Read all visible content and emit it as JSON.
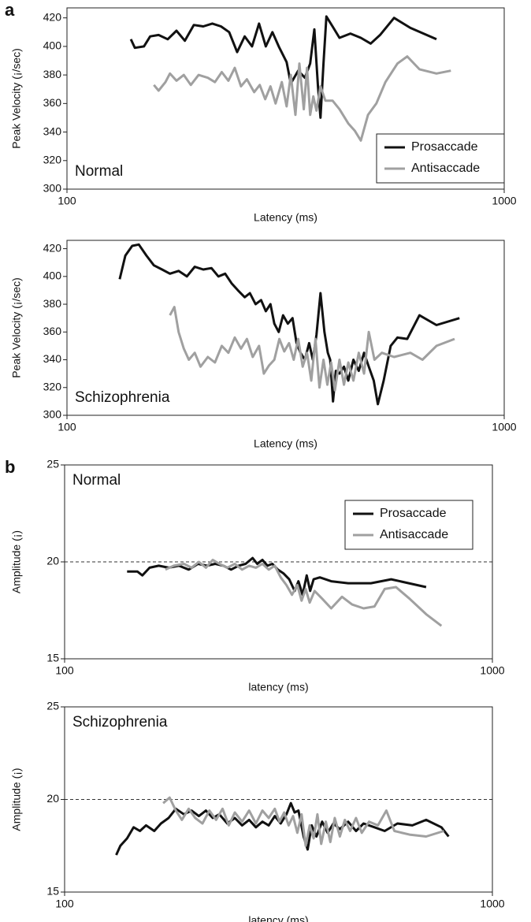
{
  "chart_data": [
    {
      "type": "line",
      "panel_label": "a",
      "annotation": "Normal",
      "annotation_corner": "lower left",
      "xlabel": "Latency (ms)",
      "ylabel": "Peak Velocity (¡/sec)",
      "xscale": "log",
      "xlim": [
        100,
        1000
      ],
      "xticks": [
        100,
        1000
      ],
      "ylim": [
        300,
        427
      ],
      "yticks": [
        300,
        320,
        340,
        360,
        380,
        400,
        420
      ],
      "legend": "lower right",
      "series": [
        {
          "name": "Prosaccade",
          "color": "#111111",
          "x": [
            140,
            143,
            150,
            155,
            162,
            170,
            178,
            186,
            195,
            205,
            215,
            225,
            235,
            245,
            255,
            265,
            275,
            285,
            295,
            305,
            318,
            325,
            338,
            350,
            360,
            368,
            375,
            380,
            386,
            392,
            405,
            420,
            445,
            470,
            495,
            520,
            560,
            610,
            700
          ],
          "values": [
            405,
            399,
            400,
            407,
            408,
            405,
            411,
            404,
            415,
            414,
            416,
            414,
            410,
            396,
            407,
            400,
            416,
            400,
            410,
            400,
            389,
            374,
            383,
            378,
            388,
            412,
            372,
            350,
            388,
            421,
            414,
            406,
            409,
            406,
            402,
            408,
            420,
            413,
            405
          ]
        },
        {
          "name": "Antisaccade",
          "color": "#a0a0a0",
          "x": [
            158,
            162,
            168,
            172,
            178,
            185,
            192,
            200,
            210,
            218,
            226,
            234,
            242,
            250,
            258,
            268,
            276,
            284,
            292,
            300,
            310,
            318,
            325,
            333,
            340,
            348,
            354,
            360,
            366,
            372,
            380,
            390,
            405,
            420,
            440,
            455,
            470,
            488,
            510,
            535,
            570,
            600,
            640,
            700,
            755
          ],
          "values": [
            373,
            369,
            375,
            381,
            376,
            380,
            373,
            380,
            378,
            375,
            382,
            376,
            385,
            372,
            377,
            368,
            373,
            363,
            372,
            360,
            375,
            358,
            380,
            352,
            388,
            356,
            385,
            352,
            365,
            355,
            372,
            362,
            362,
            356,
            346,
            341,
            334,
            352,
            360,
            375,
            388,
            393,
            384,
            381,
            383
          ]
        }
      ]
    },
    {
      "type": "line",
      "annotation": "Schizophrenia",
      "annotation_corner": "lower left",
      "xlabel": "Latency (ms)",
      "ylabel": "Peak Velocity (¡/sec)",
      "xscale": "log",
      "xlim": [
        100,
        1000
      ],
      "xticks": [
        100,
        1000
      ],
      "ylim": [
        300,
        426
      ],
      "yticks": [
        300,
        320,
        340,
        360,
        380,
        400,
        420
      ],
      "series": [
        {
          "name": "Prosaccade",
          "color": "#111111",
          "x": [
            132,
            136,
            141,
            146,
            152,
            158,
            165,
            172,
            180,
            188,
            196,
            205,
            214,
            222,
            230,
            238,
            246,
            255,
            262,
            270,
            278,
            285,
            292,
            298,
            305,
            312,
            320,
            328,
            335,
            342,
            350,
            358,
            365,
            372,
            380,
            388,
            395,
            400,
            406,
            412,
            420,
            430,
            440,
            452,
            465,
            478,
            490,
            503,
            514,
            530,
            550,
            570,
            600,
            640,
            700,
            790
          ],
          "values": [
            398,
            415,
            422,
            423,
            415,
            408,
            405,
            402,
            404,
            400,
            407,
            405,
            406,
            400,
            402,
            395,
            390,
            385,
            388,
            380,
            383,
            375,
            380,
            366,
            360,
            372,
            366,
            370,
            352,
            345,
            340,
            352,
            340,
            358,
            388,
            360,
            345,
            340,
            310,
            332,
            330,
            335,
            325,
            340,
            332,
            345,
            335,
            325,
            308,
            325,
            350,
            356,
            355,
            372,
            365,
            370
          ]
        },
        {
          "name": "Antisaccade",
          "color": "#a0a0a0",
          "x": [
            172,
            176,
            180,
            185,
            190,
            196,
            202,
            210,
            218,
            226,
            234,
            242,
            250,
            258,
            266,
            275,
            282,
            290,
            298,
            306,
            314,
            322,
            330,
            338,
            346,
            354,
            362,
            370,
            378,
            386,
            394,
            402,
            410,
            420,
            430,
            440,
            452,
            465,
            478,
            490,
            505,
            525,
            560,
            610,
            650,
            700,
            770
          ],
          "values": [
            372,
            378,
            360,
            348,
            340,
            345,
            335,
            342,
            338,
            350,
            345,
            356,
            348,
            355,
            342,
            350,
            330,
            336,
            340,
            355,
            346,
            352,
            340,
            355,
            335,
            345,
            325,
            355,
            320,
            340,
            322,
            338,
            318,
            340,
            322,
            338,
            325,
            345,
            330,
            360,
            340,
            345,
            342,
            345,
            340,
            350,
            355
          ]
        }
      ]
    },
    {
      "type": "line",
      "panel_label": "b",
      "annotation": "Normal",
      "annotation_corner": "upper left",
      "xlabel": "latency (ms)",
      "ylabel": "Amplitude (¡)",
      "xscale": "log",
      "xlim": [
        100,
        1000
      ],
      "xticks": [
        100,
        1000
      ],
      "ylim": [
        15,
        25
      ],
      "yticks": [
        15,
        20,
        25
      ],
      "hline": 20,
      "legend": "upper right",
      "series": [
        {
          "name": "Prosaccade",
          "color": "#111111",
          "x": [
            140,
            148,
            152,
            158,
            166,
            175,
            185,
            195,
            205,
            215,
            225,
            235,
            245,
            255,
            265,
            275,
            282,
            290,
            298,
            306,
            315,
            325,
            335,
            345,
            352,
            360,
            368,
            375,
            382,
            395,
            420,
            460,
            520,
            580,
            700
          ],
          "values": [
            19.5,
            19.5,
            19.3,
            19.7,
            19.8,
            19.7,
            19.8,
            19.6,
            19.9,
            19.8,
            19.9,
            19.8,
            19.6,
            19.8,
            19.9,
            20.2,
            19.9,
            20.1,
            19.8,
            19.9,
            19.6,
            19.4,
            19.1,
            18.5,
            19.0,
            18.3,
            19.3,
            18.5,
            19.1,
            19.2,
            19.0,
            18.9,
            18.9,
            19.1,
            18.7
          ]
        },
        {
          "name": "Antisaccade",
          "color": "#a0a0a0",
          "x": [
            172,
            180,
            190,
            198,
            206,
            214,
            222,
            230,
            240,
            250,
            260,
            270,
            280,
            290,
            300,
            310,
            320,
            330,
            340,
            350,
            358,
            366,
            374,
            384,
            400,
            420,
            445,
            470,
            500,
            530,
            560,
            595,
            640,
            700,
            760
          ],
          "values": [
            19.6,
            19.8,
            19.9,
            19.7,
            20.0,
            19.7,
            20.1,
            19.9,
            19.7,
            19.9,
            19.6,
            19.8,
            19.7,
            19.9,
            19.6,
            19.8,
            19.2,
            18.8,
            18.3,
            18.8,
            18.0,
            18.6,
            17.9,
            18.5,
            18.1,
            17.6,
            18.2,
            17.8,
            17.6,
            17.7,
            18.6,
            18.7,
            18.1,
            17.3,
            16.7
          ]
        }
      ]
    },
    {
      "type": "line",
      "annotation": "Schizophrenia",
      "annotation_corner": "upper left",
      "xlabel": "latency (ms)",
      "ylabel": "Amplitude (¡)",
      "xscale": "log",
      "xlim": [
        100,
        1000
      ],
      "xticks": [
        100,
        1000
      ],
      "ylim": [
        15,
        25
      ],
      "yticks": [
        15,
        20,
        25
      ],
      "hline": 20,
      "series": [
        {
          "name": "Prosaccade",
          "color": "#111111",
          "x": [
            132,
            135,
            140,
            145,
            150,
            155,
            162,
            168,
            175,
            182,
            190,
            198,
            206,
            214,
            222,
            230,
            240,
            250,
            260,
            270,
            280,
            290,
            300,
            310,
            320,
            330,
            338,
            345,
            352,
            362,
            370,
            378,
            388,
            400,
            412,
            425,
            440,
            460,
            480,
            500,
            530,
            560,
            600,
            650,
            700,
            760,
            790
          ],
          "values": [
            17.0,
            17.5,
            17.9,
            18.5,
            18.3,
            18.6,
            18.3,
            18.7,
            19.0,
            19.5,
            19.2,
            19.4,
            19.1,
            19.4,
            19.0,
            19.2,
            18.7,
            19.0,
            18.6,
            18.9,
            18.5,
            18.8,
            18.6,
            19.1,
            18.7,
            19.2,
            19.8,
            19.3,
            19.4,
            18.0,
            17.3,
            18.6,
            18.0,
            18.8,
            18.2,
            18.7,
            18.4,
            18.8,
            18.3,
            18.7,
            18.5,
            18.3,
            18.7,
            18.6,
            18.9,
            18.5,
            18.0
          ]
        },
        {
          "name": "Antisaccade",
          "color": "#a0a0a0",
          "x": [
            170,
            176,
            182,
            188,
            195,
            202,
            210,
            218,
            226,
            234,
            242,
            250,
            260,
            270,
            280,
            290,
            300,
            310,
            318,
            326,
            334,
            342,
            350,
            358,
            366,
            374,
            382,
            390,
            398,
            408,
            418,
            428,
            440,
            452,
            465,
            480,
            495,
            515,
            540,
            565,
            590,
            640,
            700,
            770
          ],
          "values": [
            19.8,
            20.1,
            19.4,
            18.9,
            19.5,
            19.0,
            18.7,
            19.4,
            18.9,
            19.5,
            18.6,
            19.3,
            18.8,
            19.4,
            18.7,
            19.4,
            19.0,
            19.5,
            18.8,
            19.3,
            18.6,
            19.1,
            18.2,
            19.2,
            17.5,
            18.6,
            17.9,
            19.2,
            17.6,
            18.8,
            17.7,
            19.0,
            18.0,
            18.9,
            18.3,
            19.0,
            18.2,
            18.8,
            18.6,
            19.4,
            18.3,
            18.1,
            18.0,
            18.3
          ]
        }
      ]
    }
  ]
}
